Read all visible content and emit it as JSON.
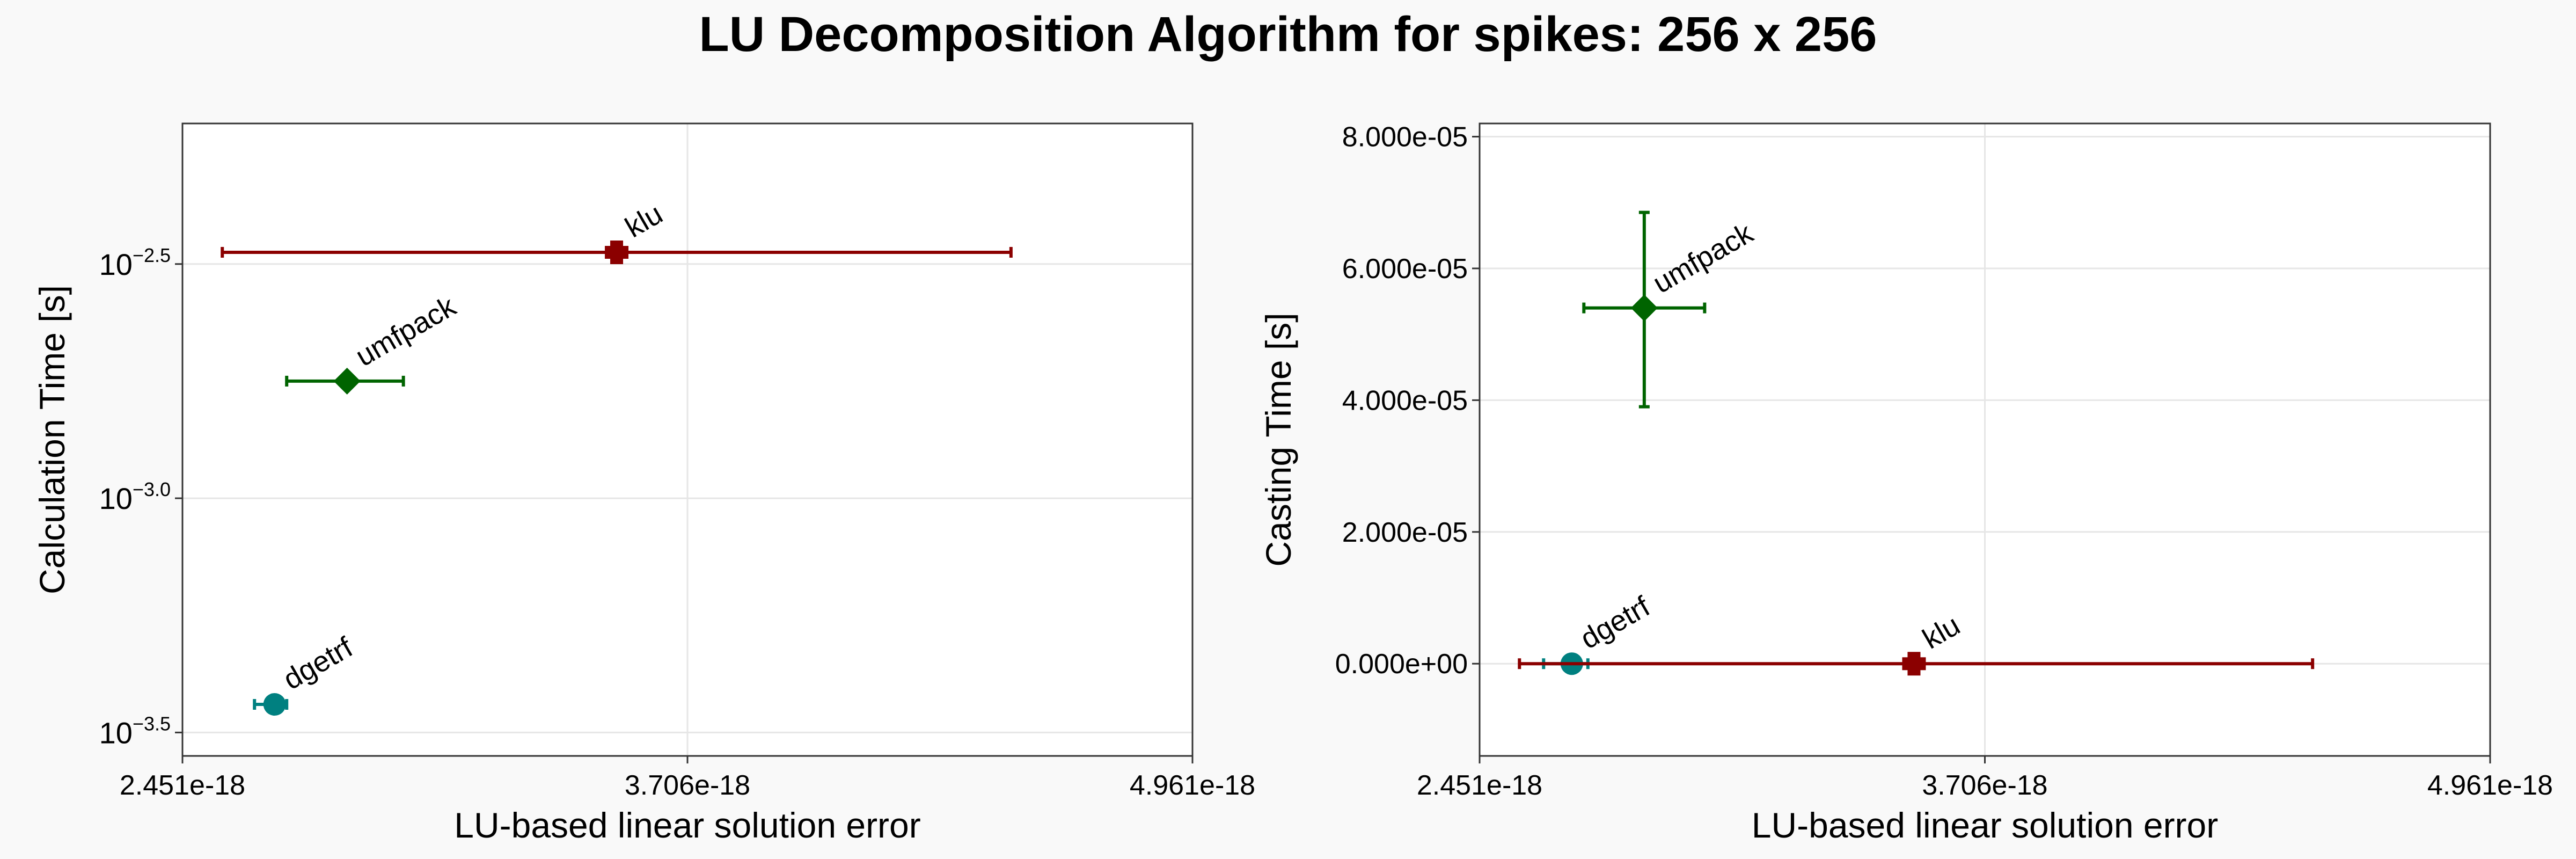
{
  "title": "LU Decomposition Algorithm for spikes: 256 x 256",
  "chart_data": [
    {
      "type": "scatter",
      "title": "",
      "xlabel": "LU-based linear solution error",
      "ylabel": "Calculation Time [s]",
      "yscale": "log10",
      "xlim": [
        2.451e-18,
        4.961e-18
      ],
      "ylim_log10": [
        -3.55,
        -2.2
      ],
      "xticks": [
        {
          "value": 2.451e-18,
          "label": "2.451e-18"
        },
        {
          "value": 3.706e-18,
          "label": "3.706e-18"
        },
        {
          "value": 4.961e-18,
          "label": "4.961e-18"
        }
      ],
      "yticks": [
        {
          "value": -2.5,
          "base": "10",
          "exp": "−2.5"
        },
        {
          "value": -3.0,
          "base": "10",
          "exp": "−3.0"
        },
        {
          "value": -3.5,
          "base": "10",
          "exp": "−3.5"
        }
      ],
      "grid": true,
      "series": [
        {
          "name": "dgetrf",
          "color": "#008080",
          "marker": "circle",
          "x": 2.68e-18,
          "y_log10": -3.44,
          "xerr": [
            2.63e-18,
            2.71e-18
          ]
        },
        {
          "name": "umfpack",
          "color": "#006400",
          "marker": "diamond",
          "x": 2.86e-18,
          "y_log10": -2.75,
          "xerr": [
            2.71e-18,
            3e-18
          ]
        },
        {
          "name": "klu",
          "color": "#8b0000",
          "marker": "cross",
          "x": 3.53e-18,
          "y_log10": -2.475,
          "xerr": [
            2.55e-18,
            4.51e-18
          ]
        }
      ]
    },
    {
      "type": "scatter",
      "title": "",
      "xlabel": "LU-based linear solution error",
      "ylabel": "Casting Time [s]",
      "yscale": "linear",
      "xlim": [
        2.451e-18,
        4.961e-18
      ],
      "ylim": [
        -1.4e-05,
        8.2e-05
      ],
      "xticks": [
        {
          "value": 2.451e-18,
          "label": "2.451e-18"
        },
        {
          "value": 3.706e-18,
          "label": "3.706e-18"
        },
        {
          "value": 4.961e-18,
          "label": "4.961e-18"
        }
      ],
      "yticks": [
        {
          "value": 0,
          "label": "0.000e+00"
        },
        {
          "value": 2e-05,
          "label": "2.000e-05"
        },
        {
          "value": 4e-05,
          "label": "4.000e-05"
        },
        {
          "value": 6e-05,
          "label": "6.000e-05"
        },
        {
          "value": 8e-05,
          "label": "8.000e-05"
        }
      ],
      "grid": true,
      "series": [
        {
          "name": "dgetrf",
          "color": "#008080",
          "marker": "circle",
          "x": 2.68e-18,
          "y": 0,
          "xerr": [
            2.61e-18,
            2.72e-18
          ]
        },
        {
          "name": "umfpack",
          "color": "#006400",
          "marker": "diamond",
          "x": 2.86e-18,
          "y": 5.4e-05,
          "xerr": [
            2.71e-18,
            3.01e-18
          ],
          "yerr": [
            3.9e-05,
            6.85e-05
          ]
        },
        {
          "name": "klu",
          "color": "#8b0000",
          "marker": "cross",
          "x": 3.53e-18,
          "y": 0,
          "xerr": [
            2.55e-18,
            4.52e-18
          ]
        }
      ]
    }
  ]
}
